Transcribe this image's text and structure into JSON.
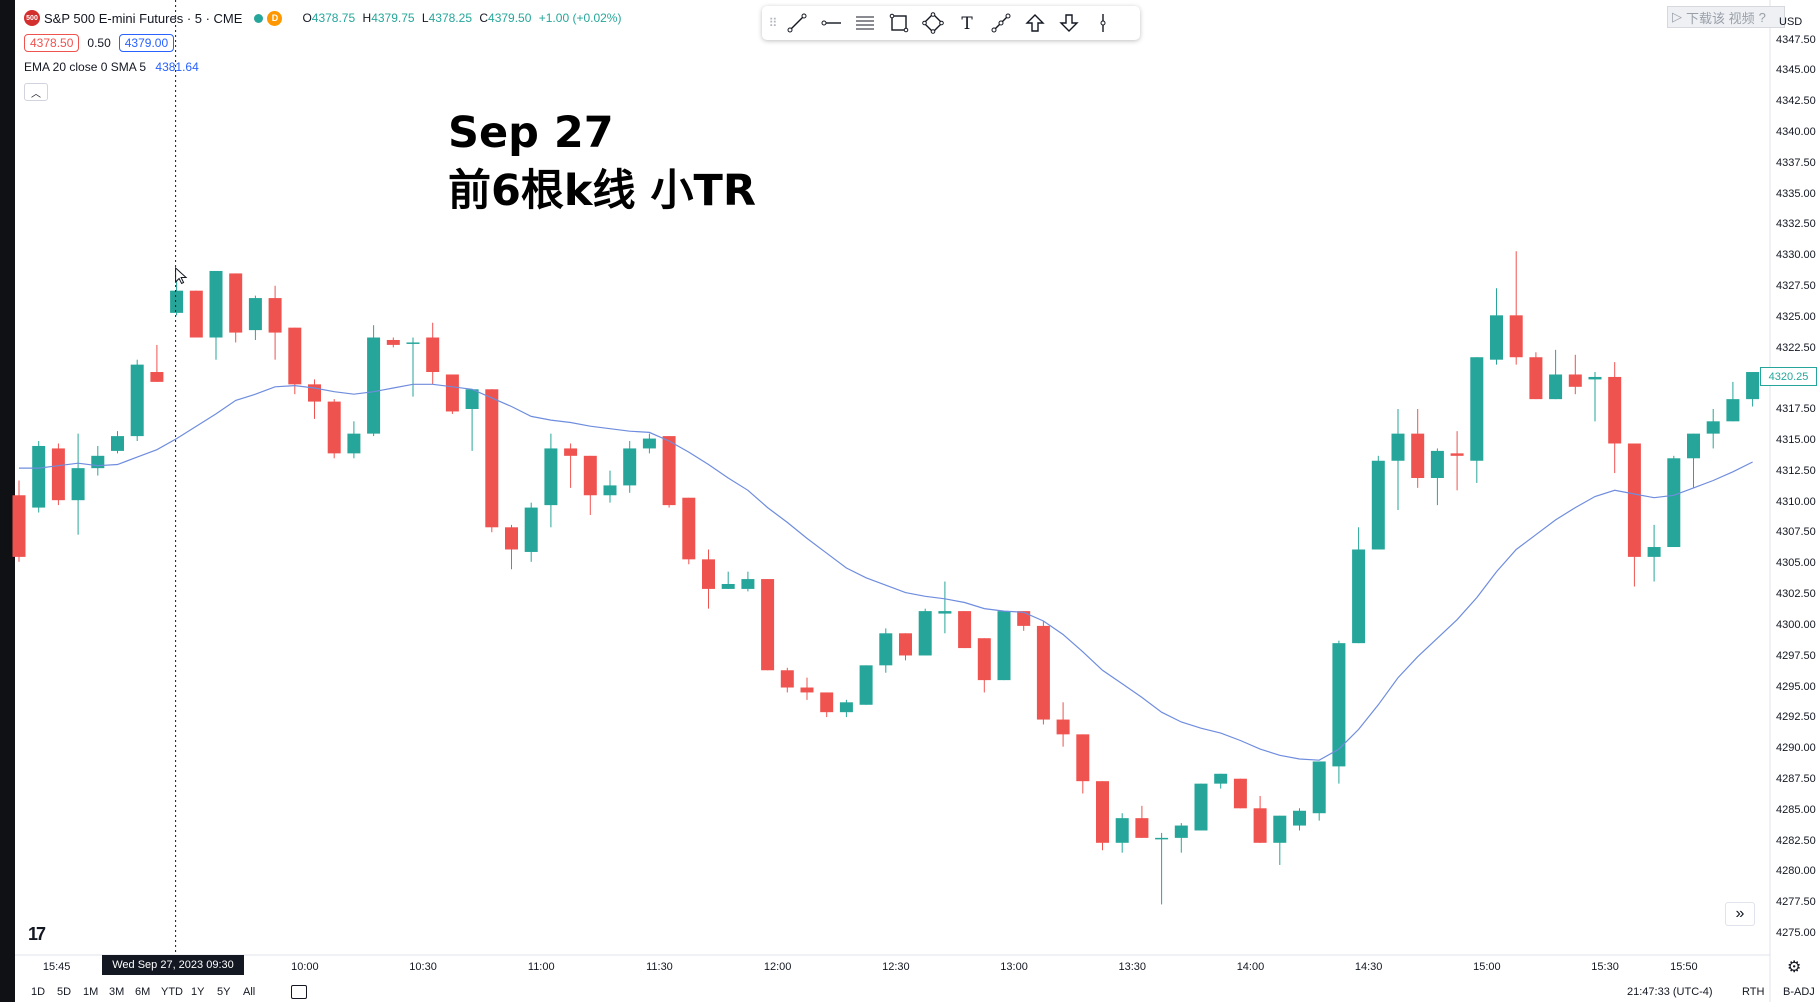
{
  "legend": {
    "symbol_logo": "500",
    "title": "S&P 500 E-mini Futures · 5 · CME",
    "d_badge": "D",
    "ohlc": {
      "o_label": "O",
      "o": "4378.75",
      "h_label": "H",
      "h": "4379.75",
      "l_label": "L",
      "l": "4378.25",
      "c_label": "C",
      "c": "4379.50",
      "change": "+1.00 (+0.02%)"
    },
    "bid": "4378.50",
    "spread": "0.50",
    "ask": "4379.00",
    "indicator": "EMA 20 close 0 SMA 5",
    "indicator_value": "4381.64"
  },
  "annotation": {
    "line1": "Sep 27",
    "line2": "前6根k线  小TR"
  },
  "toolbar": {
    "tools": [
      "trend-line-icon",
      "horizontal-ray-icon",
      "parallel-channel-icon",
      "rectangle-icon",
      "path-icon",
      "text-icon",
      "measure-icon",
      "arrow-up-icon",
      "arrow-down-icon",
      "vertical-line-icon"
    ],
    "text_tool_label": "T"
  },
  "ghost_widget": {
    "text": "下载该  视频",
    "suffix": "?"
  },
  "axis": {
    "currency": "USD",
    "price_labels": [
      "4347.50",
      "4345.00",
      "4342.50",
      "4340.00",
      "4337.50",
      "4335.00",
      "4332.50",
      "4330.00",
      "4327.50",
      "4325.00",
      "4322.50",
      "4320.00",
      "4317.50",
      "4315.00",
      "4312.50",
      "4310.00",
      "4307.50",
      "4305.00",
      "4302.50",
      "4300.00",
      "4297.50",
      "4295.00",
      "4292.50",
      "4290.00",
      "4287.50",
      "4285.00",
      "4282.50",
      "4280.00",
      "4277.50",
      "4275.00"
    ],
    "current_price_tag": "4320.25",
    "time_labels": [
      {
        "text": "15:45",
        "bar": 1.2
      },
      {
        "text": "10:00",
        "bar": 13.8
      },
      {
        "text": "10:30",
        "bar": 19.8
      },
      {
        "text": "11:00",
        "bar": 25.8
      },
      {
        "text": "11:30",
        "bar": 31.8
      },
      {
        "text": "12:00",
        "bar": 37.8
      },
      {
        "text": "12:30",
        "bar": 43.8
      },
      {
        "text": "13:00",
        "bar": 49.8
      },
      {
        "text": "13:30",
        "bar": 55.8
      },
      {
        "text": "14:00",
        "bar": 61.8
      },
      {
        "text": "14:30",
        "bar": 67.8
      },
      {
        "text": "15:00",
        "bar": 73.8
      },
      {
        "text": "15:30",
        "bar": 79.8
      },
      {
        "text": "15:50",
        "bar": 83.8
      }
    ],
    "crosshair_time": "Wed Sep 27, 2023   09:30"
  },
  "logo_text": "17",
  "bottom_bar": {
    "ranges": [
      "1D",
      "5D",
      "1M",
      "3M",
      "6M",
      "YTD",
      "1Y",
      "5Y",
      "All"
    ],
    "clock": "21:47:33 (UTC-4)",
    "session": "RTH",
    "adj": "B-ADJ"
  },
  "chart_data": {
    "type": "candlestick",
    "timeframe": "5m",
    "ylim": [
      4274,
      4349
    ],
    "up_color": "#26a69a",
    "down_color": "#ef5350",
    "ema_color": "#6f8dde",
    "candles": [
      [
        4310.6,
        4311.8,
        4305.2,
        4305.6
      ],
      [
        4309.6,
        4315.0,
        4309.2,
        4314.6
      ],
      [
        4314.4,
        4314.8,
        4309.8,
        4310.2
      ],
      [
        4310.2,
        4315.6,
        4307.4,
        4312.8
      ],
      [
        4312.8,
        4314.6,
        4312.2,
        4313.8
      ],
      [
        4314.2,
        4315.8,
        4314.0,
        4315.4
      ],
      [
        4315.4,
        4321.6,
        4315.0,
        4321.2
      ],
      [
        4320.6,
        4322.8,
        4319.8,
        4319.8
      ],
      [
        4325.4,
        4329.0,
        4325.2,
        4327.2
      ],
      [
        4327.2,
        4327.2,
        4323.4,
        4323.4
      ],
      [
        4323.4,
        4328.8,
        4321.6,
        4328.8
      ],
      [
        4328.6,
        4328.6,
        4323.0,
        4323.8
      ],
      [
        4324.0,
        4326.8,
        4323.2,
        4326.6
      ],
      [
        4326.6,
        4327.6,
        4321.6,
        4323.8
      ],
      [
        4324.2,
        4324.2,
        4318.8,
        4319.6
      ],
      [
        4319.6,
        4320.0,
        4316.8,
        4318.2
      ],
      [
        4318.2,
        4318.4,
        4313.6,
        4314.0
      ],
      [
        4314.0,
        4316.6,
        4313.6,
        4315.6
      ],
      [
        4315.6,
        4324.4,
        4315.4,
        4323.4
      ],
      [
        4323.2,
        4323.4,
        4322.6,
        4322.8
      ],
      [
        4323.0,
        4323.4,
        4318.6,
        4323.0
      ],
      [
        4323.4,
        4324.6,
        4319.6,
        4320.6
      ],
      [
        4320.4,
        4320.4,
        4317.2,
        4317.4
      ],
      [
        4317.6,
        4319.2,
        4314.2,
        4319.2
      ],
      [
        4319.2,
        4319.2,
        4307.6,
        4308.0
      ],
      [
        4308.0,
        4308.2,
        4304.6,
        4306.2
      ],
      [
        4306.0,
        4310.0,
        4305.2,
        4309.6
      ],
      [
        4309.8,
        4315.6,
        4308.0,
        4314.4
      ],
      [
        4314.4,
        4314.8,
        4311.2,
        4313.8
      ],
      [
        4313.8,
        4313.8,
        4309.0,
        4310.6
      ],
      [
        4310.6,
        4312.6,
        4310.0,
        4311.4
      ],
      [
        4311.4,
        4315.0,
        4310.8,
        4314.4
      ],
      [
        4314.4,
        4315.6,
        4314.0,
        4315.2
      ],
      [
        4315.4,
        4315.4,
        4309.6,
        4309.8
      ],
      [
        4310.4,
        4310.4,
        4305.0,
        4305.4
      ],
      [
        4305.4,
        4306.2,
        4301.4,
        4303.0
      ],
      [
        4303.0,
        4304.4,
        4303.0,
        4303.4
      ],
      [
        4303.0,
        4304.4,
        4302.8,
        4303.8
      ],
      [
        4303.8,
        4303.8,
        4296.4,
        4296.4
      ],
      [
        4296.4,
        4296.6,
        4294.6,
        4295.0
      ],
      [
        4295.0,
        4295.8,
        4294.0,
        4294.6
      ],
      [
        4294.6,
        4294.6,
        4292.6,
        4293.0
      ],
      [
        4293.0,
        4294.0,
        4292.6,
        4293.8
      ],
      [
        4293.6,
        4296.8,
        4293.6,
        4296.8
      ],
      [
        4296.8,
        4299.8,
        4296.2,
        4299.4
      ],
      [
        4299.4,
        4299.4,
        4297.2,
        4297.6
      ],
      [
        4297.6,
        4301.4,
        4297.6,
        4301.2
      ],
      [
        4301.0,
        4303.6,
        4299.4,
        4301.2
      ],
      [
        4301.2,
        4301.2,
        4298.2,
        4298.2
      ],
      [
        4299.0,
        4299.0,
        4294.6,
        4295.6
      ],
      [
        4295.6,
        4301.2,
        4295.6,
        4301.2
      ],
      [
        4301.2,
        4301.2,
        4299.6,
        4300.0
      ],
      [
        4300.0,
        4300.4,
        4292.0,
        4292.4
      ],
      [
        4292.4,
        4293.8,
        4290.2,
        4291.2
      ],
      [
        4291.2,
        4291.2,
        4286.4,
        4287.4
      ],
      [
        4287.4,
        4287.4,
        4281.8,
        4282.4
      ],
      [
        4282.4,
        4284.8,
        4281.6,
        4284.4
      ],
      [
        4284.4,
        4285.4,
        4282.8,
        4282.8
      ],
      [
        4282.8,
        4283.2,
        4277.4,
        4282.8
      ],
      [
        4282.8,
        4284.0,
        4281.6,
        4283.8
      ],
      [
        4283.4,
        4287.2,
        4283.4,
        4287.2
      ],
      [
        4287.2,
        4288.0,
        4286.8,
        4288.0
      ],
      [
        4287.6,
        4287.6,
        4285.2,
        4285.2
      ],
      [
        4285.2,
        4286.2,
        4282.4,
        4282.4
      ],
      [
        4282.4,
        4284.6,
        4280.6,
        4284.6
      ],
      [
        4283.8,
        4285.2,
        4283.4,
        4285.0
      ],
      [
        4284.8,
        4289.0,
        4284.2,
        4289.0
      ],
      [
        4288.6,
        4298.8,
        4287.2,
        4298.6
      ],
      [
        4298.6,
        4308.0,
        4298.6,
        4306.2
      ],
      [
        4306.2,
        4313.8,
        4306.2,
        4313.4
      ],
      [
        4313.4,
        4317.6,
        4309.4,
        4315.6
      ],
      [
        4315.6,
        4317.6,
        4311.2,
        4312.0
      ],
      [
        4312.0,
        4314.4,
        4309.8,
        4314.2
      ],
      [
        4314.0,
        4315.8,
        4311.0,
        4313.8
      ],
      [
        4313.4,
        4321.8,
        4311.6,
        4321.8
      ],
      [
        4321.6,
        4327.4,
        4321.2,
        4325.2
      ],
      [
        4325.2,
        4330.4,
        4321.2,
        4321.8
      ],
      [
        4321.8,
        4322.2,
        4318.4,
        4318.4
      ],
      [
        4318.4,
        4322.4,
        4318.4,
        4320.4
      ],
      [
        4320.4,
        4322.0,
        4318.8,
        4319.4
      ],
      [
        4320.0,
        4320.6,
        4316.6,
        4320.2
      ],
      [
        4320.2,
        4321.4,
        4312.4,
        4314.8
      ],
      [
        4314.8,
        4314.8,
        4303.2,
        4305.6
      ],
      [
        4305.6,
        4308.2,
        4303.6,
        4306.4
      ],
      [
        4306.4,
        4313.8,
        4306.4,
        4313.6
      ],
      [
        4313.6,
        4315.6,
        4311.2,
        4315.6
      ],
      [
        4315.6,
        4317.6,
        4314.4,
        4316.6
      ],
      [
        4316.6,
        4319.8,
        4316.6,
        4318.4
      ],
      [
        4318.4,
        4320.6,
        4317.8,
        4320.6
      ]
    ],
    "ema": [
      4312.8,
      4312.8,
      4313.0,
      4313.2,
      4313.0,
      4313.1,
      4313.7,
      4314.3,
      4315.2,
      4316.2,
      4317.2,
      4318.3,
      4318.8,
      4319.4,
      4319.5,
      4319.3,
      4319.0,
      4318.8,
      4319.0,
      4319.3,
      4319.6,
      4319.6,
      4319.4,
      4319.2,
      4318.5,
      4317.8,
      4317.0,
      4316.7,
      4316.5,
      4316.2,
      4316.0,
      4315.8,
      4315.7,
      4315.0,
      4314.1,
      4313.1,
      4312.0,
      4311.0,
      4309.6,
      4308.4,
      4307.1,
      4305.9,
      4304.7,
      4303.9,
      4303.3,
      4302.7,
      4302.4,
      4302.2,
      4301.9,
      4301.4,
      4301.2,
      4301.1,
      4300.4,
      4299.3,
      4297.9,
      4296.4,
      4295.3,
      4294.2,
      4293.0,
      4292.2,
      4291.7,
      4291.3,
      4290.7,
      4290.0,
      4289.5,
      4289.2,
      4289.1,
      4290.0,
      4291.6,
      4293.6,
      4295.8,
      4297.5,
      4299.0,
      4300.5,
      4302.3,
      4304.4,
      4306.2,
      4307.4,
      4308.6,
      4309.6,
      4310.5,
      4311.0,
      4310.7,
      4310.4,
      4310.6,
      4311.2,
      4311.8,
      4312.5,
      4313.3
    ],
    "crosshair_bar": 8
  }
}
